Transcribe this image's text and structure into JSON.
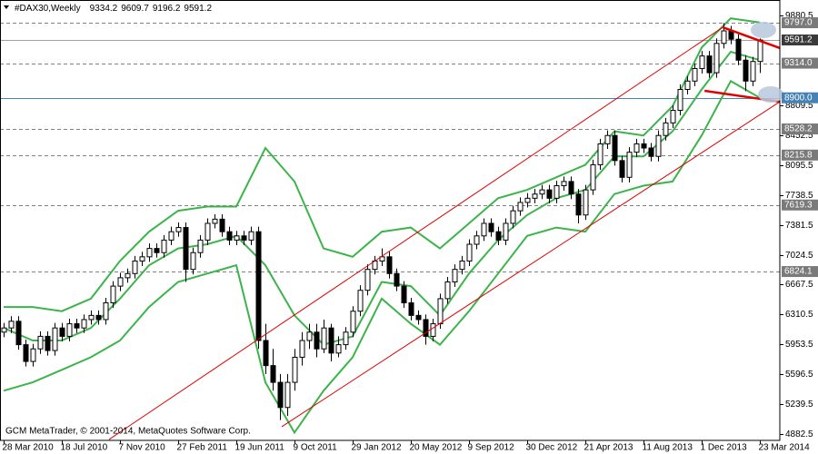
{
  "chart_data": {
    "type": "candlestick",
    "title": "#DAX30,Weekly",
    "footer": "GCM MetaTrader, © 2001-2014, MetaQuotes Software Corp.",
    "candle_color": "#000000",
    "xlim": [
      -0.5,
      106.75
    ],
    "ylim": [
      4806.6,
      10068.8
    ],
    "yticks": [
      4882.5,
      5239.5,
      5596.5,
      5953.5,
      6310.5,
      6667.5,
      7024.5,
      7381.5,
      7738.5,
      8095.5,
      8452.5,
      8809.5,
      9880.5
    ],
    "xticks": [
      {
        "value": 0,
        "label": "28 Mar 2010"
      },
      {
        "value": 8,
        "label": "18 Jul 2010"
      },
      {
        "value": 16,
        "label": "7 Nov 2010"
      },
      {
        "value": 24,
        "label": "27 Feb 2011"
      },
      {
        "value": 32,
        "label": "19 Jun 2011"
      },
      {
        "value": 40,
        "label": "9 Oct 2011"
      },
      {
        "value": 48,
        "label": "29 Jan 2012"
      },
      {
        "value": 56,
        "label": "20 May 2012"
      },
      {
        "value": 64,
        "label": "9 Sep 2012"
      },
      {
        "value": 72,
        "label": "30 Dec 2012"
      },
      {
        "value": 80,
        "label": "21 Apr 2013"
      },
      {
        "value": 88,
        "label": "11 Aug 2013"
      },
      {
        "value": 96,
        "label": "1 Dec 2013"
      },
      {
        "value": 104,
        "label": "23 Mar 2014"
      }
    ],
    "grid": false,
    "candles": [
      [
        6100,
        6210,
        6040,
        6150
      ],
      [
        6150,
        6290,
        6090,
        6230
      ],
      [
        6230,
        6290,
        5890,
        5950
      ],
      [
        5950,
        6010,
        5690,
        5750
      ],
      [
        5750,
        5960,
        5690,
        5900
      ],
      [
        5900,
        6110,
        5840,
        6050
      ],
      [
        6050,
        6110,
        5820,
        5880
      ],
      [
        5880,
        6210,
        5820,
        6150
      ],
      [
        6150,
        6210,
        5990,
        6050
      ],
      [
        6050,
        6260,
        5990,
        6200
      ],
      [
        6200,
        6260,
        6090,
        6150
      ],
      [
        6150,
        6310,
        6090,
        6250
      ],
      [
        6250,
        6360,
        6190,
        6300
      ],
      [
        6300,
        6360,
        6190,
        6250
      ],
      [
        6250,
        6510,
        6190,
        6450
      ],
      [
        6450,
        6710,
        6390,
        6650
      ],
      [
        6650,
        6810,
        6590,
        6750
      ],
      [
        6750,
        6860,
        6690,
        6800
      ],
      [
        6800,
        7010,
        6740,
        6950
      ],
      [
        6950,
        7060,
        6890,
        7000
      ],
      [
        7000,
        7160,
        6940,
        7100
      ],
      [
        7100,
        7160,
        6990,
        7050
      ],
      [
        7050,
        7260,
        6990,
        7200
      ],
      [
        7200,
        7360,
        7140,
        7300
      ],
      [
        7300,
        7410,
        7240,
        7350
      ],
      [
        7350,
        7410,
        6700,
        6850
      ],
      [
        6850,
        7110,
        6790,
        7050
      ],
      [
        7050,
        7260,
        6990,
        7200
      ],
      [
        7200,
        7460,
        7140,
        7400
      ],
      [
        7400,
        7510,
        7340,
        7450
      ],
      [
        7450,
        7510,
        7240,
        7300
      ],
      [
        7300,
        7360,
        7140,
        7200
      ],
      [
        7200,
        7310,
        7140,
        7250
      ],
      [
        7250,
        7310,
        7140,
        7200
      ],
      [
        7200,
        7360,
        7140,
        7300
      ],
      [
        7300,
        7360,
        5900,
        6000
      ],
      [
        6000,
        6200,
        5600,
        5700
      ],
      [
        5700,
        5900,
        5400,
        5500
      ],
      [
        5500,
        5600,
        5050,
        5200
      ],
      [
        5200,
        5600,
        5100,
        5500
      ],
      [
        5500,
        5900,
        5400,
        5800
      ],
      [
        5800,
        6100,
        5700,
        6000
      ],
      [
        6000,
        6200,
        5900,
        6100
      ],
      [
        6100,
        6200,
        5800,
        5900
      ],
      [
        5900,
        6250,
        5850,
        6150
      ],
      [
        6150,
        6200,
        5750,
        5850
      ],
      [
        5850,
        6050,
        5800,
        5950
      ],
      [
        5950,
        6160,
        5890,
        6100
      ],
      [
        6100,
        6410,
        6040,
        6350
      ],
      [
        6350,
        6660,
        6290,
        6600
      ],
      [
        6600,
        6910,
        6540,
        6850
      ],
      [
        6850,
        7010,
        6790,
        6950
      ],
      [
        6950,
        7100,
        6890,
        7000
      ],
      [
        7000,
        7060,
        6740,
        6800
      ],
      [
        6800,
        6860,
        6590,
        6650
      ],
      [
        6650,
        6710,
        6390,
        6450
      ],
      [
        6450,
        6510,
        6240,
        6300
      ],
      [
        6300,
        6360,
        6190,
        6250
      ],
      [
        6250,
        6310,
        5950,
        6050
      ],
      [
        6050,
        6260,
        5990,
        6200
      ],
      [
        6200,
        6560,
        6140,
        6500
      ],
      [
        6500,
        6760,
        6440,
        6700
      ],
      [
        6700,
        6910,
        6640,
        6850
      ],
      [
        6850,
        7010,
        6790,
        6950
      ],
      [
        6950,
        7210,
        6890,
        7150
      ],
      [
        7150,
        7310,
        7090,
        7250
      ],
      [
        7250,
        7460,
        7190,
        7400
      ],
      [
        7400,
        7460,
        7240,
        7300
      ],
      [
        7300,
        7360,
        7140,
        7200
      ],
      [
        7200,
        7460,
        7140,
        7400
      ],
      [
        7400,
        7610,
        7340,
        7550
      ],
      [
        7550,
        7710,
        7490,
        7650
      ],
      [
        7650,
        7760,
        7590,
        7700
      ],
      [
        7700,
        7810,
        7640,
        7750
      ],
      [
        7750,
        7860,
        7690,
        7800
      ],
      [
        7800,
        7860,
        7640,
        7700
      ],
      [
        7700,
        7910,
        7640,
        7850
      ],
      [
        7850,
        7960,
        7790,
        7900
      ],
      [
        7900,
        7960,
        7690,
        7750
      ],
      [
        7750,
        7810,
        7400,
        7500
      ],
      [
        7500,
        7860,
        7440,
        7800
      ],
      [
        7800,
        8160,
        7740,
        8100
      ],
      [
        8100,
        8410,
        8040,
        8350
      ],
      [
        8350,
        8510,
        8290,
        8450
      ],
      [
        8450,
        8510,
        8090,
        8150
      ],
      [
        8150,
        8210,
        7890,
        7950
      ],
      [
        7950,
        8310,
        7890,
        8250
      ],
      [
        8250,
        8410,
        8190,
        8350
      ],
      [
        8350,
        8410,
        8240,
        8300
      ],
      [
        8300,
        8360,
        8140,
        8200
      ],
      [
        8200,
        8510,
        8140,
        8450
      ],
      [
        8450,
        8660,
        8390,
        8600
      ],
      [
        8600,
        8810,
        8540,
        8750
      ],
      [
        8750,
        9060,
        8690,
        9000
      ],
      [
        9000,
        9160,
        8940,
        9100
      ],
      [
        9100,
        9310,
        9040,
        9250
      ],
      [
        9250,
        9460,
        9190,
        9400
      ],
      [
        9400,
        9460,
        9140,
        9200
      ],
      [
        9200,
        9610,
        9140,
        9550
      ],
      [
        9550,
        9794,
        9490,
        9700
      ],
      [
        9700,
        9760,
        9540,
        9600
      ],
      [
        9600,
        9660,
        9290,
        9350
      ],
      [
        9350,
        9410,
        8980,
        9100
      ],
      [
        9100,
        9390,
        9040,
        9334.2
      ],
      [
        9334.2,
        9609.7,
        9196.2,
        9591.2
      ]
    ],
    "bands": {
      "color": "#3cb44b",
      "x": [
        0,
        4,
        8,
        12,
        16,
        20,
        24,
        28,
        32,
        36,
        40,
        44,
        48,
        52,
        56,
        60,
        64,
        68,
        72,
        76,
        80,
        84,
        88,
        92,
        96,
        100,
        104
      ],
      "upper": [
        6400,
        6400,
        6350,
        6500,
        6950,
        7300,
        7550,
        7600,
        7600,
        8300,
        7900,
        7100,
        7000,
        7300,
        7350,
        7100,
        7400,
        7700,
        7800,
        7950,
        8100,
        8500,
        8450,
        8800,
        9500,
        9850,
        9800
      ],
      "middle": [
        6150,
        6000,
        6000,
        6150,
        6500,
        6900,
        7100,
        7150,
        7250,
        6900,
        6300,
        5950,
        6050,
        6700,
        6650,
        6300,
        6800,
        7200,
        7500,
        7700,
        7800,
        8200,
        8200,
        8500,
        9000,
        9450,
        9350
      ],
      "lower": [
        5400,
        5500,
        5650,
        5800,
        6000,
        6400,
        6700,
        6800,
        6900,
        5500,
        4900,
        5400,
        5800,
        6500,
        6200,
        5950,
        6350,
        6800,
        7250,
        7350,
        7300,
        7750,
        7850,
        7900,
        8450,
        9100,
        8900
      ]
    },
    "lines": [
      {
        "color": "#e00000",
        "width": 1,
        "points": [
          [
            14.5,
            4817
          ],
          [
            98.9,
            9743
          ]
        ]
      },
      {
        "color": "#e00000",
        "width": 1,
        "points": [
          [
            38.25,
            4970
          ],
          [
            106.75,
            8853
          ]
        ]
      },
      {
        "color": "#e00000",
        "width": 2.5,
        "points": [
          [
            98.9,
            9743
          ],
          [
            106.75,
            9494
          ]
        ]
      },
      {
        "color": "#e00000",
        "width": 2.5,
        "points": [
          [
            96.4,
            8984
          ],
          [
            106.75,
            8853
          ]
        ]
      }
    ],
    "levels": [
      {
        "value": 9797,
        "label": "9797.0",
        "color": "#808080",
        "style": "dashed"
      },
      {
        "value": 9314,
        "label": "9314.0",
        "color": "#808080",
        "style": "dashed"
      },
      {
        "value": 8900,
        "label": "8900.0",
        "color": "#4682b4",
        "style": "solid"
      },
      {
        "value": 8528.2,
        "label": "8528.2",
        "color": "#808080",
        "style": "dashed"
      },
      {
        "value": 8215.8,
        "label": "8215.8",
        "color": "#808080",
        "style": "dashed"
      },
      {
        "value": 7619.3,
        "label": "7619.3",
        "color": "#808080",
        "style": "dashed"
      },
      {
        "value": 6824.1,
        "label": "6824.1",
        "color": "#808080",
        "style": "dashed"
      }
    ],
    "price_line_color": "#a0a0a0"
  }
}
